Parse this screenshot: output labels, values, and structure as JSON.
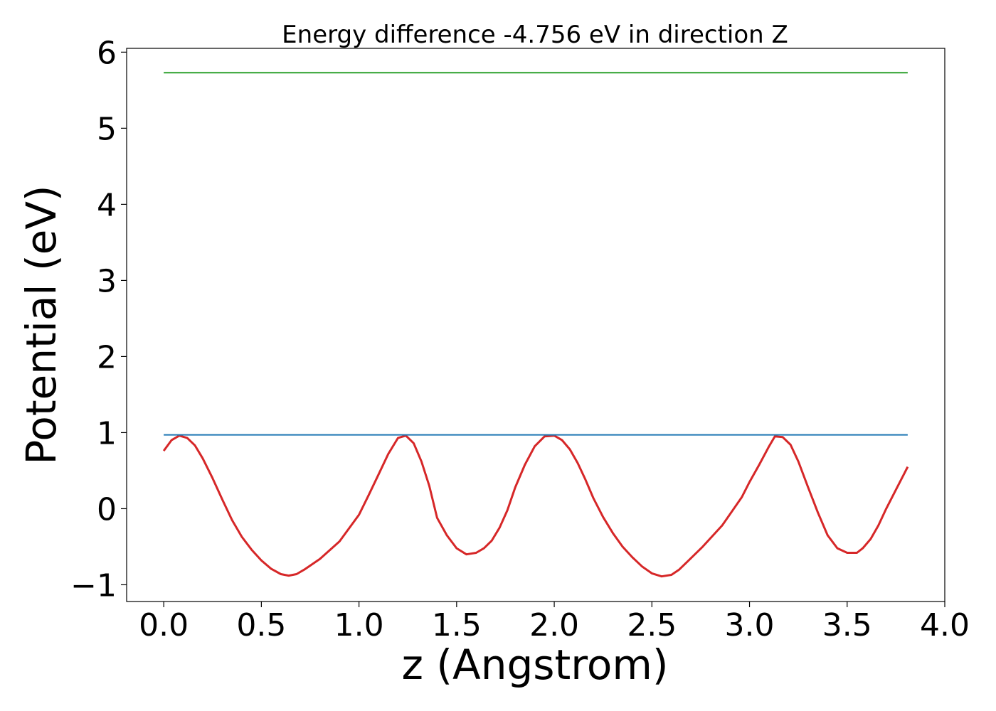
{
  "chart_data": {
    "type": "line",
    "title": "Energy difference -4.756 eV in direction Z",
    "xlabel": "z (Angstrom)",
    "ylabel": "Potential (eV)",
    "xlim": [
      -0.19,
      4.0
    ],
    "ylim": [
      -1.22,
      6.05
    ],
    "xticks": [
      {
        "value": 0.0,
        "label": "0.0"
      },
      {
        "value": 0.5,
        "label": "0.5"
      },
      {
        "value": 1.0,
        "label": "1.0"
      },
      {
        "value": 1.5,
        "label": "1.5"
      },
      {
        "value": 2.0,
        "label": "2.0"
      },
      {
        "value": 2.5,
        "label": "2.5"
      },
      {
        "value": 3.0,
        "label": "3.0"
      },
      {
        "value": 3.5,
        "label": "3.5"
      },
      {
        "value": 4.0,
        "label": "4.0"
      }
    ],
    "yticks": [
      {
        "value": -1,
        "label": "−1"
      },
      {
        "value": 0,
        "label": "0"
      },
      {
        "value": 1,
        "label": "1"
      },
      {
        "value": 2,
        "label": "2"
      },
      {
        "value": 3,
        "label": "3"
      },
      {
        "value": 4,
        "label": "4"
      },
      {
        "value": 5,
        "label": "5"
      },
      {
        "value": 6,
        "label": "6"
      }
    ],
    "grid": false,
    "legend": "none",
    "series": [
      {
        "color": "#d62728",
        "x": [
          0.0,
          0.04,
          0.08,
          0.12,
          0.16,
          0.2,
          0.25,
          0.3,
          0.35,
          0.4,
          0.45,
          0.5,
          0.55,
          0.6,
          0.64,
          0.68,
          0.72,
          0.8,
          0.9,
          1.0,
          1.05,
          1.1,
          1.15,
          1.2,
          1.24,
          1.28,
          1.32,
          1.36,
          1.4,
          1.45,
          1.5,
          1.55,
          1.6,
          1.64,
          1.68,
          1.72,
          1.76,
          1.8,
          1.85,
          1.9,
          1.95,
          2.0,
          2.04,
          2.08,
          2.12,
          2.16,
          2.2,
          2.25,
          2.3,
          2.35,
          2.4,
          2.45,
          2.5,
          2.55,
          2.6,
          2.64,
          2.68,
          2.76,
          2.86,
          2.96,
          3.0,
          3.05,
          3.1,
          3.13,
          3.17,
          3.21,
          3.25,
          3.3,
          3.35,
          3.4,
          3.45,
          3.5,
          3.55,
          3.58,
          3.62,
          3.66,
          3.7,
          3.75,
          3.81
        ],
        "y": [
          0.76,
          0.9,
          0.96,
          0.93,
          0.83,
          0.66,
          0.4,
          0.12,
          -0.15,
          -0.37,
          -0.54,
          -0.68,
          -0.79,
          -0.86,
          -0.88,
          -0.86,
          -0.8,
          -0.66,
          -0.43,
          -0.08,
          0.18,
          0.45,
          0.72,
          0.93,
          0.96,
          0.86,
          0.62,
          0.3,
          -0.12,
          -0.35,
          -0.52,
          -0.6,
          -0.58,
          -0.52,
          -0.42,
          -0.25,
          -0.02,
          0.28,
          0.58,
          0.82,
          0.95,
          0.96,
          0.9,
          0.78,
          0.6,
          0.38,
          0.14,
          -0.11,
          -0.32,
          -0.5,
          -0.64,
          -0.76,
          -0.85,
          -0.89,
          -0.87,
          -0.8,
          -0.7,
          -0.5,
          -0.22,
          0.15,
          0.35,
          0.58,
          0.82,
          0.95,
          0.94,
          0.84,
          0.62,
          0.28,
          -0.05,
          -0.35,
          -0.52,
          -0.58,
          -0.58,
          -0.52,
          -0.4,
          -0.22,
          0.0,
          0.25,
          0.55
        ]
      },
      {
        "color": "#1f77b4",
        "x": [
          0.0,
          3.81
        ],
        "y": [
          0.97,
          0.97
        ]
      },
      {
        "color": "#2ca02c",
        "x": [
          0.0,
          3.81
        ],
        "y": [
          5.73,
          5.73
        ]
      }
    ]
  }
}
